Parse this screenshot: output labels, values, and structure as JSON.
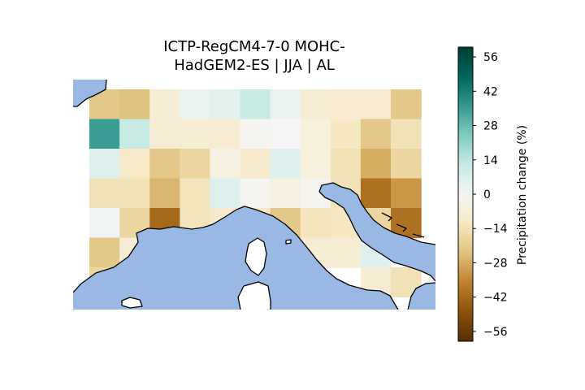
{
  "title": {
    "line1": "ICTP-RegCM4-7-0 MOHC-",
    "line2": "HadGEM2-ES | JJA | AL"
  },
  "colorbar": {
    "label": "Precipitation change (%)",
    "ticks": [
      56,
      42,
      28,
      14,
      0,
      -14,
      -28,
      -42,
      -56
    ],
    "tick_labels": [
      "56",
      "42",
      "28",
      "14",
      "0",
      "−14",
      "−28",
      "−42",
      "−56"
    ],
    "range": [
      -60,
      60
    ],
    "colormap": "BrBG"
  },
  "colors": {
    "sea": "#99b8e3",
    "land_blank": "#ffffff",
    "coast": "#000000"
  },
  "chart_data": {
    "type": "heatmap",
    "region": "Northern Italy / Alps",
    "grid_rows": 7,
    "grid_cols": 11,
    "values": [
      [
        -22,
        -24,
        -8,
        3,
        5,
        12,
        3,
        -8,
        -9,
        -9,
        -22
      ],
      [
        35,
        12,
        -8,
        -8,
        -9,
        -1,
        0,
        -6,
        -12,
        -22,
        -14
      ],
      [
        6,
        -11,
        -22,
        -18,
        -5,
        -10,
        6,
        -6,
        -14,
        -28,
        -18
      ],
      [
        -14,
        -14,
        -26,
        -13,
        6,
        -1,
        -5,
        -2,
        -14,
        -40,
        -32
      ],
      [
        1,
        -18,
        -42,
        -13,
        -10,
        -12,
        -22,
        -13,
        -12,
        -18,
        -40
      ],
      [
        -22,
        -8,
        null,
        null,
        null,
        null,
        null,
        -8,
        -8,
        6,
        null
      ],
      [
        -18,
        null,
        null,
        null,
        null,
        null,
        -6,
        null,
        null,
        -8,
        -14
      ]
    ]
  }
}
